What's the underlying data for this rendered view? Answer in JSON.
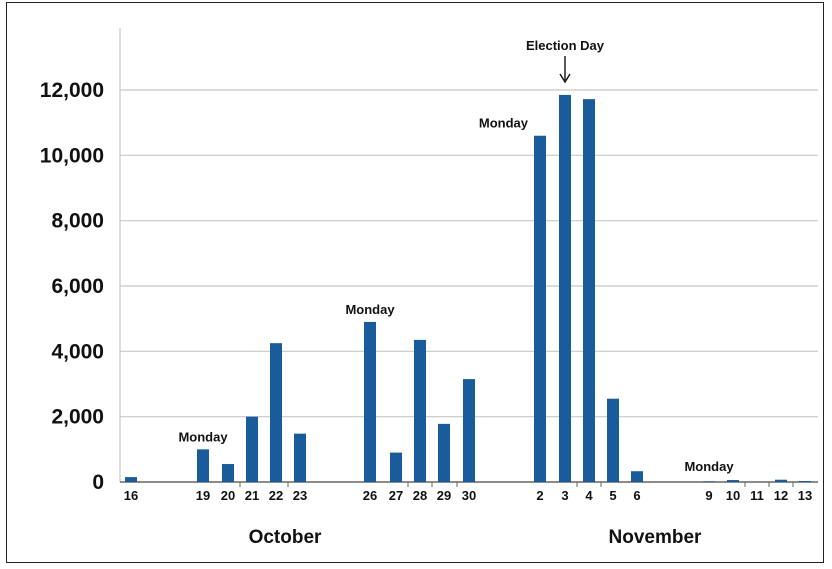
{
  "chart_data": {
    "type": "bar",
    "title": "",
    "xlabel": "",
    "ylabel": "",
    "ylim": [
      0,
      12000
    ],
    "grid": true,
    "bar_color": "#1a5b9c",
    "yticks": [
      "0",
      "2,000",
      "4,000",
      "6,000",
      "8,000",
      "10,000",
      "12,000"
    ],
    "bars": [
      {
        "day": "16",
        "value": 150
      },
      {
        "day": "19",
        "value": 1000
      },
      {
        "day": "20",
        "value": 550
      },
      {
        "day": "21",
        "value": 2000
      },
      {
        "day": "22",
        "value": 4250
      },
      {
        "day": "23",
        "value": 1480
      },
      {
        "day": "26",
        "value": 4900
      },
      {
        "day": "27",
        "value": 900
      },
      {
        "day": "28",
        "value": 4350
      },
      {
        "day": "29",
        "value": 1780
      },
      {
        "day": "30",
        "value": 3150
      },
      {
        "day": "2",
        "value": 10600
      },
      {
        "day": "3",
        "value": 11850
      },
      {
        "day": "4",
        "value": 11720
      },
      {
        "day": "5",
        "value": 2550
      },
      {
        "day": "6",
        "value": 330
      },
      {
        "day": "9",
        "value": 20
      },
      {
        "day": "10",
        "value": 60
      },
      {
        "day": "11",
        "value": 0
      },
      {
        "day": "12",
        "value": 70
      },
      {
        "day": "13",
        "value": 30
      }
    ],
    "months": [
      "October",
      "November"
    ],
    "annotations": [
      {
        "label": "Monday",
        "day": "19"
      },
      {
        "label": "Monday",
        "day": "26"
      },
      {
        "label": "Monday",
        "day": "2"
      },
      {
        "label": "Monday",
        "day": "9"
      },
      {
        "label": "Election Day",
        "day": "3",
        "arrow": true
      }
    ]
  }
}
